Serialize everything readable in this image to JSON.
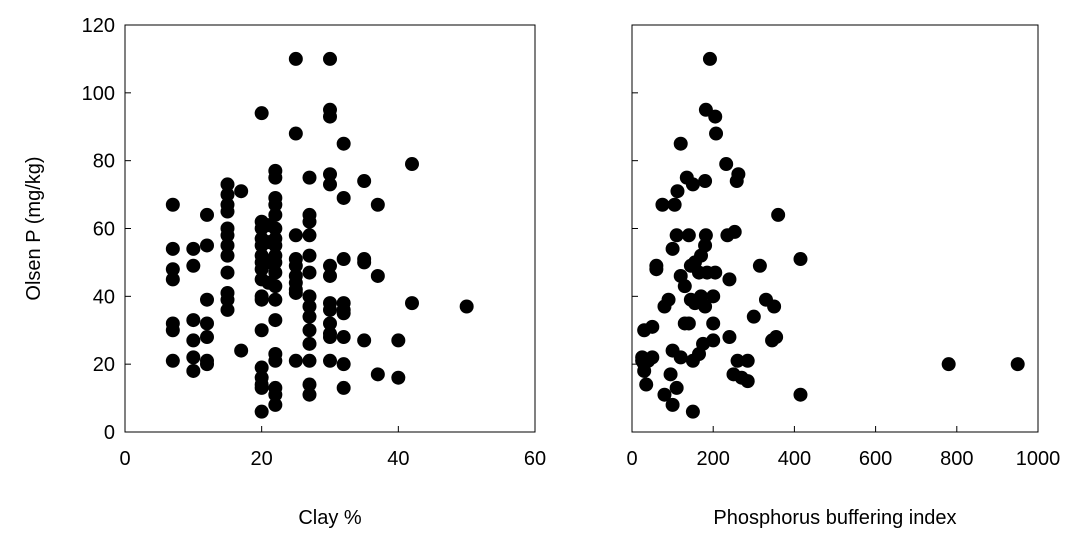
{
  "chart_data": [
    {
      "type": "scatter",
      "x_label": "Clay %",
      "y_label": "Olsen P (mg/kg)",
      "color": "#000000",
      "xlim": [
        0,
        60
      ],
      "xticks": [
        0,
        20,
        40,
        60
      ],
      "ylim": [
        0,
        120
      ],
      "yticks": [
        0,
        20,
        40,
        60,
        80,
        100,
        120
      ],
      "ytick_labels": true,
      "x": [
        7,
        7,
        7,
        7,
        7,
        7,
        7,
        10,
        10,
        10,
        10,
        10,
        10,
        12,
        12,
        12,
        12,
        12,
        12,
        12,
        15,
        15,
        15,
        15,
        15,
        15,
        15,
        15,
        15,
        15,
        15,
        15,
        17,
        17,
        20,
        20,
        20,
        20,
        20,
        20,
        20,
        20,
        20,
        20,
        20,
        20,
        20,
        20,
        20,
        20,
        20,
        21,
        21,
        21,
        21,
        22,
        22,
        22,
        22,
        22,
        22,
        22,
        22,
        22,
        22,
        22,
        22,
        22,
        22,
        22,
        22,
        22,
        22,
        22,
        25,
        25,
        25,
        25,
        25,
        25,
        25,
        25,
        25,
        25,
        27,
        27,
        27,
        27,
        27,
        27,
        27,
        27,
        27,
        27,
        27,
        27,
        27,
        27,
        30,
        30,
        30,
        30,
        30,
        30,
        30,
        30,
        30,
        30,
        30,
        30,
        30,
        32,
        32,
        32,
        32,
        32,
        32,
        32,
        32,
        32,
        35,
        35,
        35,
        35,
        37,
        37,
        37,
        40,
        40,
        42,
        42,
        50
      ],
      "y": [
        67,
        54,
        48,
        45,
        32,
        30,
        21,
        54,
        49,
        33,
        27,
        22,
        18,
        64,
        55,
        39,
        32,
        28,
        21,
        20,
        73,
        70,
        67,
        65,
        60,
        58,
        55,
        52,
        47,
        41,
        39,
        36,
        71,
        24,
        94,
        62,
        60,
        57,
        55,
        52,
        50,
        48,
        45,
        40,
        39,
        30,
        19,
        16,
        14,
        13,
        6,
        61,
        56,
        50,
        44,
        77,
        75,
        69,
        67,
        64,
        60,
        57,
        55,
        52,
        50,
        47,
        43,
        39,
        33,
        23,
        21,
        13,
        11,
        8,
        110,
        88,
        58,
        51,
        49,
        46,
        44,
        42,
        41,
        21,
        75,
        64,
        62,
        58,
        52,
        47,
        40,
        37,
        34,
        30,
        26,
        21,
        14,
        11,
        110,
        95,
        93,
        76,
        73,
        49,
        46,
        38,
        36,
        32,
        29,
        28,
        21,
        85,
        69,
        51,
        38,
        36,
        35,
        28,
        20,
        13,
        74,
        51,
        50,
        27,
        67,
        46,
        17,
        27,
        16,
        79,
        38,
        37
      ]
    },
    {
      "type": "scatter",
      "x_label": "Phosphorus buffering index",
      "color": "#000000",
      "xlim": [
        0,
        1000
      ],
      "xticks": [
        0,
        200,
        400,
        600,
        800,
        1000
      ],
      "ylim": [
        0,
        120
      ],
      "yticks": [
        0,
        20,
        40,
        60,
        80,
        100,
        120
      ],
      "ytick_labels": false,
      "x": [
        192,
        182,
        205,
        207,
        120,
        232,
        262,
        258,
        180,
        150,
        135,
        112,
        105,
        75,
        360,
        253,
        182,
        140,
        110,
        235,
        180,
        100,
        415,
        170,
        155,
        145,
        315,
        60,
        60,
        205,
        185,
        165,
        120,
        240,
        130,
        170,
        200,
        145,
        90,
        155,
        330,
        350,
        80,
        180,
        300,
        200,
        140,
        130,
        50,
        30,
        355,
        240,
        200,
        175,
        345,
        100,
        165,
        150,
        120,
        260,
        285,
        30,
        25,
        25,
        40,
        50,
        780,
        950,
        30,
        95,
        250,
        270,
        285,
        35,
        110,
        80,
        415,
        100,
        150
      ],
      "y": [
        110,
        95,
        93,
        88,
        85,
        79,
        76,
        74,
        74,
        73,
        75,
        71,
        67,
        67,
        64,
        59,
        58,
        58,
        58,
        58,
        55,
        54,
        51,
        52,
        50,
        49,
        49,
        49,
        48,
        47,
        47,
        47,
        46,
        45,
        43,
        40,
        40,
        39,
        39,
        38,
        39,
        37,
        37,
        37,
        34,
        32,
        32,
        32,
        31,
        30,
        28,
        28,
        27,
        26,
        27,
        24,
        23,
        21,
        22,
        21,
        21,
        20,
        21,
        22,
        21,
        22,
        20,
        20,
        18,
        17,
        17,
        16,
        15,
        14,
        13,
        11,
        11,
        8,
        6
      ]
    }
  ]
}
